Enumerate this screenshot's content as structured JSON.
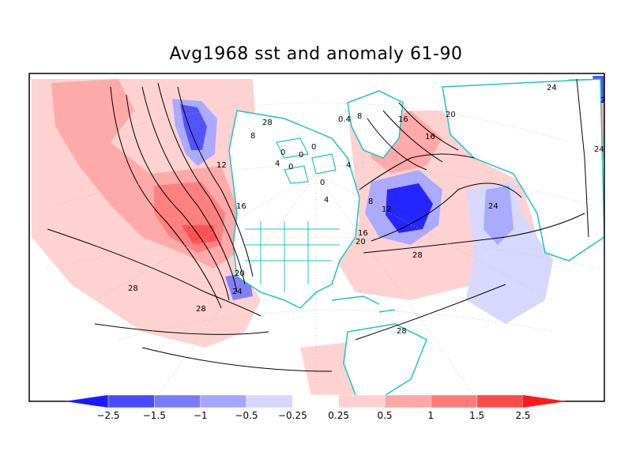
{
  "title": "Avg1968 sst and anomaly 61-90",
  "colors": {
    "neg_strong": "#1a1aff",
    "neg_mid": "#7a7aff",
    "neg_light": "#c9c9ff",
    "pos_light": "#ffc8c8",
    "pos_mid": "#ff8a8a",
    "pos_strong": "#ff4a4a",
    "coast": "#1fc4c4",
    "contour": "#000000"
  },
  "contour_labels": [
    "0",
    "0",
    "0",
    "0",
    "4",
    "4",
    "0",
    "4",
    "8",
    "12",
    "16",
    "20",
    "24",
    "28",
    "28",
    "28",
    "28",
    "24",
    "24",
    "20",
    "16",
    "12",
    "8",
    "16",
    "20",
    "24",
    "28",
    "0.4",
    "8",
    "16",
    "24"
  ],
  "colorbar": {
    "labels": [
      "-2.5",
      "-1.5",
      "-1",
      "-0.5",
      "-0.25",
      "0.25",
      "0.5",
      "1",
      "1.5",
      "2.5"
    ],
    "colors": [
      "#1a1aff",
      "#4a4aff",
      "#7a7aff",
      "#a6a6ff",
      "#d6d6ff",
      "#ffffff",
      "#ffd0d0",
      "#ffa6a6",
      "#ff7a7a",
      "#ff4a4a",
      "#ff1a1a"
    ]
  }
}
